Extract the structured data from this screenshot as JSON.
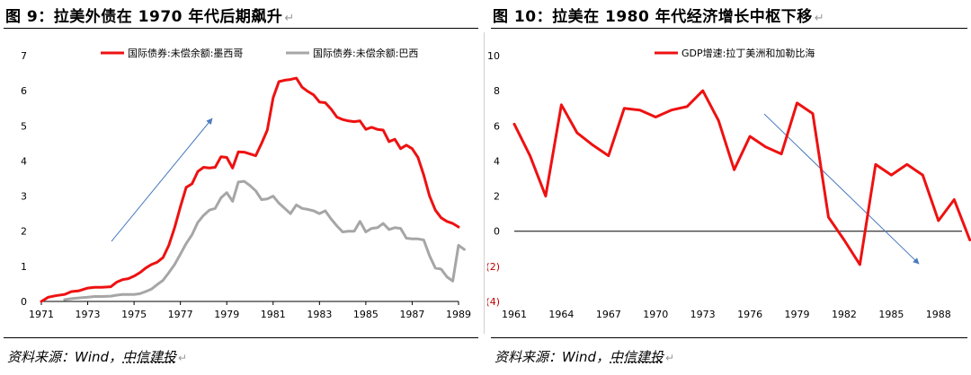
{
  "left": {
    "title": "图 9：拉美外债在 1970 年代后期飙升",
    "source_prefix": "资料来源：Wind，",
    "source_org": "中信建投",
    "chart_data": {
      "type": "line",
      "title": "",
      "xlabel": "",
      "ylabel": "",
      "xlim": [
        1971,
        1989
      ],
      "ylim": [
        0,
        7
      ],
      "x_ticks": [
        "1971",
        "1973",
        "1975",
        "1977",
        "1979",
        "1981",
        "1983",
        "1985",
        "1987",
        "1989"
      ],
      "y_ticks": [
        "0",
        "1",
        "2",
        "3",
        "4",
        "5",
        "6",
        "7"
      ],
      "legend_position": "top",
      "grid": false,
      "series": [
        {
          "name": "国际债券:未偿余额:墨西哥",
          "color": "#ee1111",
          "x": [
            1971.0,
            1971.3,
            1971.6,
            1972.0,
            1972.3,
            1972.6,
            1973.0,
            1973.3,
            1973.6,
            1974.0,
            1974.25,
            1974.5,
            1974.75,
            1975.0,
            1975.25,
            1975.5,
            1975.75,
            1976.0,
            1976.25,
            1976.5,
            1976.75,
            1977.0,
            1977.25,
            1977.5,
            1977.75,
            1978.0,
            1978.25,
            1978.5,
            1978.75,
            1979.0,
            1979.25,
            1979.5,
            1979.75,
            1980.0,
            1980.25,
            1980.5,
            1980.75,
            1981.0,
            1981.25,
            1981.5,
            1981.75,
            1982.0,
            1982.25,
            1982.5,
            1982.75,
            1983.0,
            1983.25,
            1983.5,
            1983.75,
            1984.0,
            1984.25,
            1984.5,
            1984.75,
            1985.0,
            1985.25,
            1985.5,
            1985.75,
            1986.0,
            1986.25,
            1986.5,
            1986.75,
            1987.0,
            1987.25,
            1987.5,
            1987.75,
            1988.0,
            1988.25,
            1988.5,
            1988.75,
            1989.0
          ],
          "values": [
            0.0,
            0.12,
            0.16,
            0.2,
            0.28,
            0.3,
            0.38,
            0.4,
            0.4,
            0.42,
            0.55,
            0.62,
            0.65,
            0.72,
            0.82,
            0.95,
            1.05,
            1.12,
            1.25,
            1.6,
            2.1,
            2.7,
            3.25,
            3.35,
            3.7,
            3.82,
            3.8,
            3.82,
            4.12,
            4.1,
            3.8,
            4.26,
            4.25,
            4.2,
            4.15,
            4.5,
            4.88,
            5.8,
            6.26,
            6.3,
            6.32,
            6.36,
            6.1,
            5.98,
            5.88,
            5.68,
            5.66,
            5.48,
            5.25,
            5.18,
            5.14,
            5.12,
            5.14,
            4.9,
            4.96,
            4.9,
            4.88,
            4.55,
            4.62,
            4.35,
            4.45,
            4.35,
            4.1,
            3.6,
            3.0,
            2.6,
            2.38,
            2.28,
            2.22,
            2.12
          ]
        },
        {
          "name": "国际债券:未偿余额:巴西",
          "color": "#a6a6a6",
          "x": [
            1972.0,
            1972.3,
            1972.6,
            1973.0,
            1973.3,
            1973.6,
            1974.0,
            1974.25,
            1974.5,
            1974.75,
            1975.0,
            1975.25,
            1975.5,
            1975.75,
            1976.0,
            1976.25,
            1976.5,
            1976.75,
            1977.0,
            1977.25,
            1977.5,
            1977.75,
            1978.0,
            1978.25,
            1978.5,
            1978.75,
            1979.0,
            1979.25,
            1979.5,
            1979.75,
            1980.0,
            1980.25,
            1980.5,
            1980.75,
            1981.0,
            1981.25,
            1981.5,
            1981.75,
            1982.0,
            1982.25,
            1982.5,
            1982.75,
            1983.0,
            1983.25,
            1983.5,
            1983.75,
            1984.0,
            1984.25,
            1984.5,
            1984.75,
            1985.0,
            1985.25,
            1985.5,
            1985.75,
            1986.0,
            1986.25,
            1986.5,
            1986.75,
            1987.0,
            1987.25,
            1987.5,
            1987.75,
            1988.0,
            1988.25,
            1988.5,
            1988.75,
            1989.0,
            1989.25
          ],
          "values": [
            0.05,
            0.08,
            0.1,
            0.12,
            0.14,
            0.14,
            0.15,
            0.18,
            0.2,
            0.2,
            0.2,
            0.22,
            0.28,
            0.35,
            0.48,
            0.6,
            0.82,
            1.05,
            1.35,
            1.65,
            1.9,
            2.25,
            2.45,
            2.6,
            2.65,
            2.95,
            3.1,
            2.85,
            3.4,
            3.42,
            3.3,
            3.15,
            2.9,
            2.92,
            3.0,
            2.8,
            2.65,
            2.5,
            2.75,
            2.65,
            2.62,
            2.58,
            2.5,
            2.58,
            2.35,
            2.15,
            1.98,
            2.0,
            2.0,
            2.28,
            1.98,
            2.08,
            2.1,
            2.22,
            2.05,
            2.1,
            2.08,
            1.8,
            1.78,
            1.78,
            1.75,
            1.3,
            0.95,
            0.92,
            0.7,
            0.58,
            1.6,
            1.48
          ]
        }
      ]
    }
  },
  "right": {
    "title": "图 10：拉美在 1980 年代经济增长中枢下移",
    "source_prefix": "资料来源：Wind，",
    "source_org": "中信建投",
    "chart_data": {
      "type": "line",
      "title": "",
      "xlabel": "",
      "ylabel": "",
      "xlim": [
        1961,
        1989.5
      ],
      "ylim": [
        -4,
        10
      ],
      "x_ticks": [
        "1961",
        "1964",
        "1967",
        "1970",
        "1973",
        "1976",
        "1979",
        "1982",
        "1985",
        "1988"
      ],
      "y_ticks": [
        "10",
        "8",
        "6",
        "4",
        "2",
        "0",
        "(2)",
        "(4)"
      ],
      "negative_tick_color": "#c00000",
      "legend_position": "top",
      "grid": false,
      "series": [
        {
          "name": "GDP增速:拉丁美洲和加勒比海",
          "color": "#ee1111",
          "x": [
            1961,
            1962,
            1963,
            1964,
            1965,
            1966,
            1967,
            1968,
            1969,
            1970,
            1971,
            1972,
            1973,
            1974,
            1975,
            1976,
            1977,
            1978,
            1979,
            1980,
            1981,
            1982,
            1983,
            1984,
            1985,
            1986,
            1987,
            1988,
            1989,
            1990
          ],
          "values": [
            6.1,
            4.3,
            2.0,
            7.2,
            5.6,
            4.9,
            4.3,
            7.0,
            6.9,
            6.5,
            6.9,
            7.1,
            8.0,
            6.3,
            3.5,
            5.4,
            4.8,
            4.4,
            7.3,
            6.7,
            0.8,
            -0.5,
            -1.9,
            3.8,
            3.2,
            3.8,
            3.2,
            0.6,
            1.8,
            -0.5
          ]
        }
      ]
    }
  }
}
